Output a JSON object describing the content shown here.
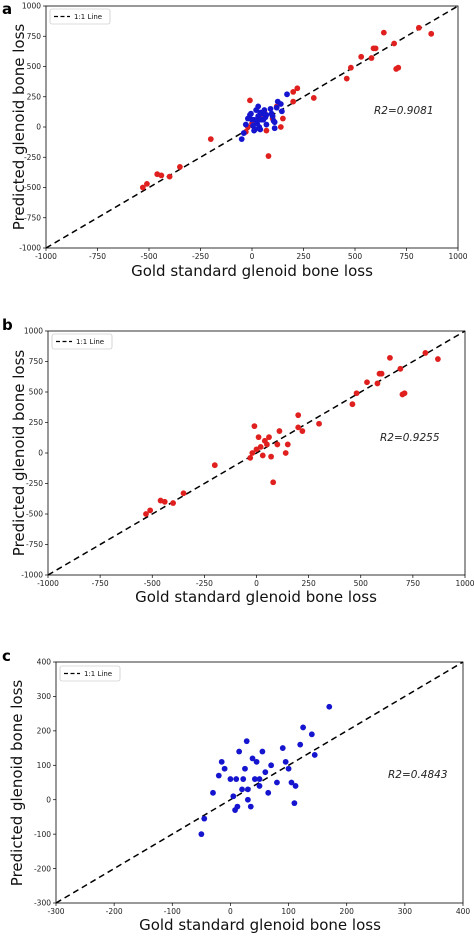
{
  "chart_data": [
    {
      "type": "scatter",
      "panel": "a",
      "xlabel": "Gold standard glenoid bone loss",
      "ylabel": "Predicted glenoid bone loss",
      "xlim": [
        -1000,
        1000
      ],
      "ylim": [
        -1000,
        1000
      ],
      "xticks": [
        "-1000",
        "-750",
        "-500",
        "-250",
        "0",
        "250",
        "500",
        "750",
        "1000"
      ],
      "yticks": [
        "-1000",
        "-750",
        "-500",
        "-250",
        "0",
        "250",
        "500",
        "750",
        "1000"
      ],
      "legend": {
        "label": "1:1 Line",
        "placement": "top-left"
      },
      "annotation": "R2=0.9081",
      "reference_line": [
        [
          -1000,
          -1000
        ],
        [
          1000,
          1000
        ]
      ],
      "series": [
        {
          "color": "#e0201e",
          "points": [
            [
              -530,
              -500
            ],
            [
              -510,
              -470
            ],
            [
              -460,
              -390
            ],
            [
              -440,
              -400
            ],
            [
              -400,
              -410
            ],
            [
              -350,
              -330
            ],
            [
              -200,
              -100
            ],
            [
              -30,
              -40
            ],
            [
              -20,
              0
            ],
            [
              0,
              30
            ],
            [
              -10,
              220
            ],
            [
              20,
              50
            ],
            [
              40,
              100
            ],
            [
              60,
              130
            ],
            [
              70,
              -30
            ],
            [
              80,
              -240
            ],
            [
              100,
              70
            ],
            [
              120,
              170
            ],
            [
              140,
              0
            ],
            [
              150,
              70
            ],
            [
              200,
              210
            ],
            [
              200,
              290
            ],
            [
              220,
              320
            ],
            [
              300,
              240
            ],
            [
              460,
              400
            ],
            [
              480,
              490
            ],
            [
              530,
              580
            ],
            [
              580,
              570
            ],
            [
              590,
              650
            ],
            [
              600,
              650
            ],
            [
              640,
              780
            ],
            [
              690,
              690
            ],
            [
              700,
              480
            ],
            [
              710,
              490
            ],
            [
              810,
              820
            ],
            [
              870,
              770
            ]
          ]
        },
        {
          "color": "#1515d0",
          "points": [
            [
              -50,
              -100
            ],
            [
              -40,
              -50
            ],
            [
              -30,
              20
            ],
            [
              -20,
              70
            ],
            [
              -10,
              100
            ],
            [
              -5,
              110
            ],
            [
              0,
              60
            ],
            [
              5,
              10
            ],
            [
              10,
              -30
            ],
            [
              10,
              60
            ],
            [
              15,
              -20
            ],
            [
              20,
              140
            ],
            [
              25,
              30
            ],
            [
              25,
              60
            ],
            [
              30,
              90
            ],
            [
              30,
              170
            ],
            [
              35,
              0
            ],
            [
              40,
              -20
            ],
            [
              40,
              120
            ],
            [
              45,
              60
            ],
            [
              50,
              110
            ],
            [
              55,
              60
            ],
            [
              60,
              140
            ],
            [
              65,
              80
            ],
            [
              70,
              20
            ],
            [
              70,
              100
            ],
            [
              90,
              150
            ],
            [
              95,
              110
            ],
            [
              100,
              90
            ],
            [
              105,
              50
            ],
            [
              110,
              -10
            ],
            [
              110,
              40
            ],
            [
              120,
              160
            ],
            [
              125,
              210
            ],
            [
              140,
              190
            ],
            [
              145,
              130
            ],
            [
              170,
              270
            ]
          ]
        }
      ]
    },
    {
      "type": "scatter",
      "panel": "b",
      "xlabel": "Gold standard glenoid bone loss",
      "ylabel": "Predicted glenoid bone loss",
      "xlim": [
        -1000,
        1000
      ],
      "ylim": [
        -1000,
        1000
      ],
      "xticks": [
        "-1000",
        "-750",
        "-500",
        "-250",
        "0",
        "250",
        "500",
        "750",
        "1000"
      ],
      "yticks": [
        "-1000",
        "-750",
        "-500",
        "-250",
        "0",
        "250",
        "500",
        "750",
        "1000"
      ],
      "legend": {
        "label": "1:1 Line",
        "placement": "top-left"
      },
      "annotation": "R2=0.9255",
      "reference_line": [
        [
          -1000,
          -1000
        ],
        [
          1000,
          1000
        ]
      ],
      "series": [
        {
          "color": "#e0201e",
          "points": [
            [
              -530,
              -500
            ],
            [
              -510,
              -470
            ],
            [
              -460,
              -390
            ],
            [
              -440,
              -400
            ],
            [
              -400,
              -410
            ],
            [
              -350,
              -330
            ],
            [
              -200,
              -100
            ],
            [
              -30,
              -40
            ],
            [
              -20,
              0
            ],
            [
              0,
              30
            ],
            [
              -10,
              220
            ],
            [
              10,
              130
            ],
            [
              20,
              50
            ],
            [
              30,
              -20
            ],
            [
              40,
              100
            ],
            [
              50,
              70
            ],
            [
              60,
              130
            ],
            [
              70,
              -30
            ],
            [
              80,
              -240
            ],
            [
              100,
              70
            ],
            [
              110,
              180
            ],
            [
              140,
              0
            ],
            [
              150,
              70
            ],
            [
              200,
              210
            ],
            [
              200,
              310
            ],
            [
              220,
              180
            ],
            [
              300,
              240
            ],
            [
              460,
              400
            ],
            [
              480,
              490
            ],
            [
              530,
              580
            ],
            [
              580,
              570
            ],
            [
              590,
              650
            ],
            [
              600,
              650
            ],
            [
              640,
              780
            ],
            [
              690,
              690
            ],
            [
              700,
              480
            ],
            [
              710,
              490
            ],
            [
              810,
              820
            ],
            [
              870,
              770
            ]
          ]
        }
      ]
    },
    {
      "type": "scatter",
      "panel": "c",
      "xlabel": "Gold standard glenoid bone loss",
      "ylabel": "Predicted glenoid bone loss",
      "xlim": [
        -300,
        400
      ],
      "ylim": [
        -300,
        400
      ],
      "xticks": [
        "-300",
        "-200",
        "-100",
        "0",
        "100",
        "200",
        "300",
        "400"
      ],
      "yticks": [
        "-300",
        "-200",
        "-100",
        "0",
        "100",
        "200",
        "300",
        "400"
      ],
      "legend": {
        "label": "1:1 Line",
        "placement": "top-left"
      },
      "annotation": "R2=0.4843",
      "reference_line": [
        [
          -300,
          -300
        ],
        [
          400,
          400
        ]
      ],
      "series": [
        {
          "color": "#1515d0",
          "points": [
            [
              -50,
              -100
            ],
            [
              -45,
              -55
            ],
            [
              -30,
              20
            ],
            [
              -20,
              70
            ],
            [
              -15,
              110
            ],
            [
              -10,
              90
            ],
            [
              0,
              60
            ],
            [
              5,
              10
            ],
            [
              8,
              -30
            ],
            [
              10,
              60
            ],
            [
              12,
              -20
            ],
            [
              15,
              140
            ],
            [
              20,
              30
            ],
            [
              22,
              60
            ],
            [
              25,
              90
            ],
            [
              28,
              170
            ],
            [
              30,
              0
            ],
            [
              35,
              -20
            ],
            [
              38,
              120
            ],
            [
              42,
              60
            ],
            [
              45,
              110
            ],
            [
              50,
              60
            ],
            [
              55,
              140
            ],
            [
              60,
              80
            ],
            [
              65,
              20
            ],
            [
              70,
              100
            ],
            [
              80,
              50
            ],
            [
              90,
              150
            ],
            [
              95,
              110
            ],
            [
              100,
              90
            ],
            [
              105,
              50
            ],
            [
              110,
              -10
            ],
            [
              112,
              40
            ],
            [
              120,
              160
            ],
            [
              125,
              210
            ],
            [
              140,
              190
            ],
            [
              145,
              130
            ],
            [
              170,
              270
            ],
            [
              30,
              30
            ],
            [
              50,
              40
            ]
          ]
        }
      ]
    }
  ],
  "panel_labels": [
    "a",
    "b",
    "c"
  ]
}
